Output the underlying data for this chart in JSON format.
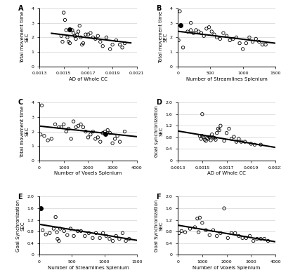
{
  "panels": [
    {
      "label": "A",
      "xlabel": "AD of Whole CC",
      "ylabel": "Total movement time\nSEC",
      "xlim": [
        0.0013,
        0.0021
      ],
      "ylim": [
        0,
        4
      ],
      "yticks": [
        0,
        1,
        2,
        3,
        4
      ],
      "xticks": [
        0.0013,
        0.0015,
        0.0017,
        0.0019,
        0.0021
      ],
      "xticklabels": [
        "0.0013",
        "0.0015",
        "0.0017",
        "0.0019",
        "0.0021"
      ],
      "x": [
        0.00148,
        0.00149,
        0.0015,
        0.00151,
        0.00152,
        0.00153,
        0.00154,
        0.00155,
        0.00157,
        0.00158,
        0.00159,
        0.0016,
        0.00161,
        0.00162,
        0.00163,
        0.00164,
        0.00165,
        0.00166,
        0.00168,
        0.0017,
        0.00172,
        0.00174,
        0.00176,
        0.00178,
        0.0018,
        0.00182,
        0.00185,
        0.00188,
        0.0019,
        0.00193,
        0.00196,
        0.00198,
        0.002,
        0.00155
      ],
      "y": [
        2.1,
        1.7,
        3.7,
        3.2,
        2.5,
        2.0,
        1.7,
        1.6,
        2.5,
        2.3,
        2.1,
        1.9,
        2.2,
        2.4,
        2.8,
        2.0,
        1.5,
        1.6,
        2.2,
        2.2,
        2.3,
        2.0,
        1.9,
        2.1,
        1.7,
        1.4,
        2.0,
        1.2,
        1.5,
        1.8,
        1.5,
        1.3,
        1.6,
        2.55
      ],
      "line_x": [
        0.0014,
        0.00205
      ],
      "line_y": [
        2.28,
        1.62
      ],
      "filled": [
        33
      ]
    },
    {
      "label": "B",
      "xlabel": "Number of Streamlines Splenium",
      "ylabel": "Total movement time\nSEC",
      "xlim": [
        0,
        1500
      ],
      "ylim": [
        0,
        4
      ],
      "yticks": [
        0,
        1,
        2,
        3,
        4
      ],
      "xticks": [
        0,
        500,
        1000,
        1500
      ],
      "xticklabels": [
        "0",
        "500",
        "1000",
        "1500"
      ],
      "x": [
        10,
        30,
        80,
        150,
        200,
        240,
        280,
        320,
        360,
        400,
        440,
        480,
        520,
        560,
        600,
        650,
        700,
        750,
        800,
        850,
        900,
        950,
        1000,
        1050,
        1100,
        1150,
        1200,
        1250,
        1300,
        1350,
        200,
        40
      ],
      "y": [
        1.8,
        3.8,
        1.3,
        2.4,
        2.5,
        2.3,
        2.5,
        2.4,
        2.3,
        2.1,
        2.6,
        2.7,
        2.4,
        2.2,
        2.0,
        1.9,
        2.3,
        2.1,
        1.8,
        1.9,
        2.0,
        1.6,
        1.2,
        1.6,
        2.0,
        1.7,
        1.9,
        1.7,
        1.5,
        1.5,
        3.0,
        2.85
      ],
      "line_x": [
        0,
        1500
      ],
      "line_y": [
        2.42,
        1.6
      ],
      "filled": [
        31
      ]
    },
    {
      "label": "C",
      "xlabel": "Number of Voxels Splenium",
      "ylabel": "Total movement time\nSEC",
      "xlim": [
        0,
        4000
      ],
      "ylim": [
        0,
        4
      ],
      "yticks": [
        0,
        1,
        2,
        3,
        4
      ],
      "xticks": [
        0,
        1000,
        2000,
        3000,
        4000
      ],
      "xticklabels": [
        "0",
        "1000",
        "2000",
        "3000",
        "4000"
      ],
      "x": [
        50,
        100,
        200,
        350,
        500,
        650,
        800,
        900,
        1000,
        1100,
        1200,
        1300,
        1400,
        1500,
        1600,
        1700,
        1800,
        1900,
        2000,
        2100,
        2200,
        2300,
        2400,
        2500,
        2600,
        2700,
        2800,
        2900,
        3000,
        3100,
        3200,
        3300,
        3500,
        2700
      ],
      "y": [
        1.8,
        3.8,
        1.7,
        1.4,
        1.5,
        2.5,
        2.3,
        2.3,
        2.5,
        2.0,
        2.2,
        1.5,
        2.7,
        2.3,
        2.4,
        2.5,
        2.3,
        2.0,
        1.6,
        1.8,
        2.0,
        1.5,
        1.6,
        1.3,
        1.9,
        2.0,
        2.1,
        1.9,
        1.2,
        1.5,
        1.7,
        1.3,
        2.0,
        1.85
      ],
      "line_x": [
        0,
        4000
      ],
      "line_y": [
        2.38,
        1.65
      ],
      "filled": [
        33
      ]
    },
    {
      "label": "D",
      "xlabel": "AD of Whole CC",
      "ylabel": "Goal synchronization\nSEC",
      "xlim": [
        0.0013,
        0.0021
      ],
      "ylim": [
        0,
        2
      ],
      "yticks": [
        0,
        0.4,
        0.8,
        1.2,
        1.6,
        2.0
      ],
      "xticks": [
        0.0013,
        0.0015,
        0.0017,
        0.0019,
        0.0021
      ],
      "xticklabels": [
        "0.0013",
        "0.0015",
        "0.0017",
        "0.0019",
        "0.0021"
      ],
      "x": [
        0.00148,
        0.00149,
        0.0015,
        0.00151,
        0.00152,
        0.00153,
        0.00154,
        0.00155,
        0.00156,
        0.00157,
        0.00158,
        0.00159,
        0.0016,
        0.00161,
        0.00162,
        0.00163,
        0.00164,
        0.00165,
        0.00168,
        0.0017,
        0.00172,
        0.00174,
        0.00176,
        0.00178,
        0.0018,
        0.00182,
        0.00185,
        0.0019,
        0.00193,
        0.00198,
        0.0015
      ],
      "y": [
        0.85,
        0.75,
        0.85,
        0.8,
        0.72,
        0.68,
        0.78,
        0.75,
        0.82,
        0.7,
        0.9,
        0.8,
        0.78,
        0.72,
        0.95,
        1.1,
        1.05,
        1.2,
        0.68,
        0.95,
        1.1,
        0.75,
        0.82,
        0.65,
        0.75,
        0.65,
        0.65,
        0.58,
        0.55,
        0.55,
        1.6
      ],
      "line_x": [
        0.0013,
        0.00215
      ],
      "line_y": [
        1.02,
        0.42
      ],
      "filled": []
    },
    {
      "label": "E",
      "xlabel": "Number of Streamlines Splenium",
      "ylabel": "Goal Synchronization\nSEC",
      "xlim": [
        0,
        1500
      ],
      "ylim": [
        0,
        2
      ],
      "yticks": [
        0,
        0.4,
        0.8,
        1.2,
        1.6,
        2.0
      ],
      "xticks": [
        0,
        500,
        1000,
        1500
      ],
      "xticklabels": [
        "0",
        "500",
        "1000",
        "1500"
      ],
      "x": [
        20,
        50,
        100,
        160,
        220,
        270,
        320,
        380,
        430,
        480,
        530,
        590,
        640,
        700,
        760,
        820,
        870,
        930,
        980,
        1030,
        1080,
        1130,
        1180,
        1230,
        1280,
        1330,
        1380,
        250,
        280,
        300
      ],
      "y": [
        1.6,
        0.85,
        0.7,
        0.75,
        0.9,
        0.78,
        0.9,
        0.82,
        0.68,
        0.9,
        0.65,
        0.82,
        0.82,
        0.65,
        0.75,
        0.58,
        0.75,
        0.58,
        0.75,
        0.65,
        0.55,
        0.48,
        0.65,
        0.55,
        0.75,
        0.48,
        0.55,
        1.3,
        0.55,
        0.48
      ],
      "line_x": [
        0,
        1500
      ],
      "line_y": [
        1.05,
        0.5
      ],
      "filled": [
        0
      ]
    },
    {
      "label": "F",
      "xlabel": "Number of Voxels Splenium",
      "ylabel": "Goal Synchronization\nSEC",
      "xlim": [
        0,
        4000
      ],
      "ylim": [
        0,
        2
      ],
      "yticks": [
        0,
        0.4,
        0.8,
        1.2,
        1.6,
        2.0
      ],
      "xticks": [
        0,
        1000,
        2000,
        3000,
        4000
      ],
      "xticklabels": [
        "0",
        "1000",
        "2000",
        "3000",
        "4000"
      ],
      "x": [
        50,
        150,
        300,
        500,
        700,
        850,
        1000,
        1150,
        1300,
        1450,
        1600,
        1750,
        1900,
        2050,
        2200,
        2350,
        2500,
        2650,
        2800,
        2950,
        3100,
        3250,
        3400,
        3550,
        3700,
        800,
        900
      ],
      "y": [
        0.75,
        0.82,
        0.78,
        0.9,
        0.95,
        0.78,
        1.1,
        0.85,
        0.68,
        0.85,
        0.65,
        0.75,
        1.6,
        0.58,
        0.75,
        0.75,
        0.65,
        0.58,
        0.58,
        0.65,
        0.48,
        0.55,
        0.55,
        0.55,
        0.48,
        1.25,
        1.28
      ],
      "line_x": [
        0,
        4000
      ],
      "line_y": [
        1.02,
        0.45
      ],
      "filled": []
    }
  ]
}
